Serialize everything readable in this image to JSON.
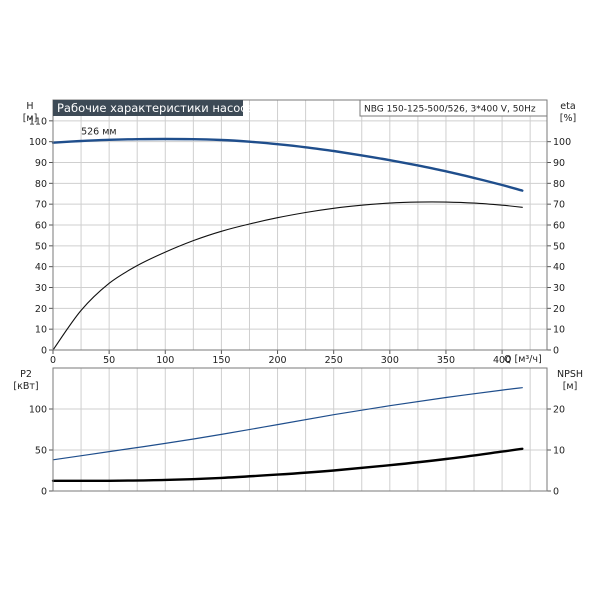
{
  "chart_data": [
    {
      "type": "line",
      "title": "Рабочие характеристики насоса",
      "subtitle": "NBG 150-125-500/526, 3*400 V, 50Hz",
      "ylabel_left": [
        "H",
        "[м]"
      ],
      "ylabel_right": [
        "eta",
        "[%]"
      ],
      "xlabel": "Q [м³/ч]",
      "xlim": [
        0,
        440
      ],
      "ylim_left": [
        0,
        120
      ],
      "ylim_right": [
        0,
        120
      ],
      "x_ticks": [
        0,
        50,
        100,
        150,
        200,
        250,
        300,
        350,
        400
      ],
      "y_ticks_left": [
        0,
        10,
        20,
        30,
        40,
        50,
        60,
        70,
        80,
        90,
        100,
        110
      ],
      "y_ticks_right": [
        0,
        10,
        20,
        30,
        40,
        50,
        60,
        70,
        80,
        90,
        100
      ],
      "annotation": "526 мм",
      "grid": true,
      "series": [
        {
          "axis": "left",
          "color": "#1f4e8c",
          "x": [
            0,
            25,
            50,
            75,
            100,
            125,
            150,
            175,
            200,
            225,
            250,
            275,
            300,
            325,
            350,
            375,
            400,
            418
          ],
          "values": [
            99.5,
            100.3,
            100.9,
            101.2,
            101.3,
            101.2,
            100.8,
            100.0,
            98.8,
            97.3,
            95.5,
            93.4,
            91.1,
            88.6,
            85.8,
            82.6,
            79.2,
            76.5
          ]
        },
        {
          "axis": "right",
          "color": "#111111",
          "x": [
            0,
            25,
            50,
            75,
            100,
            125,
            150,
            175,
            200,
            225,
            250,
            275,
            300,
            325,
            350,
            375,
            400,
            418
          ],
          "values": [
            0,
            19,
            32,
            40.5,
            47,
            52.5,
            57,
            60.5,
            63.5,
            66,
            68,
            69.5,
            70.5,
            71,
            71,
            70.5,
            69.5,
            68.5
          ]
        }
      ]
    },
    {
      "type": "line",
      "ylabel_left": [
        "P2",
        "[кВт]"
      ],
      "ylabel_right": [
        "NPSH",
        "[м]"
      ],
      "xlim": [
        0,
        440
      ],
      "ylim_left": [
        0,
        150
      ],
      "ylim_right": [
        0,
        30
      ],
      "y_ticks_left": [
        0,
        50,
        100
      ],
      "y_ticks_right": [
        0,
        10,
        20
      ],
      "grid": true,
      "series": [
        {
          "axis": "left",
          "color": "#1f4e8c",
          "x": [
            0,
            50,
            100,
            150,
            200,
            250,
            300,
            350,
            400,
            418
          ],
          "values": [
            38,
            48,
            58,
            69,
            81,
            93,
            104,
            114,
            123,
            126
          ]
        },
        {
          "axis": "right",
          "color": "#000000",
          "x": [
            0,
            50,
            100,
            150,
            200,
            250,
            300,
            350,
            400,
            418
          ],
          "values": [
            2.5,
            2.5,
            2.7,
            3.2,
            4.0,
            5.0,
            6.3,
            7.8,
            9.6,
            10.3
          ]
        }
      ]
    }
  ]
}
